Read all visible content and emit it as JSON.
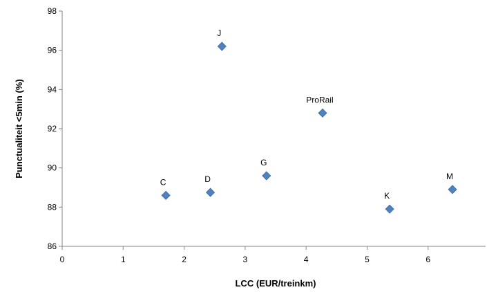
{
  "chart_data": {
    "type": "scatter",
    "title": "",
    "xlabel": "LCC (EUR/treinkm)",
    "ylabel": "Punctualiteit  <5min (%)",
    "xlim": [
      0,
      7
    ],
    "ylim": [
      86,
      98
    ],
    "xticks": [
      0,
      1,
      2,
      3,
      4,
      5,
      6
    ],
    "yticks": [
      86,
      88,
      90,
      92,
      94,
      96,
      98
    ],
    "grid": false,
    "legend": "none",
    "marker": "diamond",
    "marker_color": "#4F81BD",
    "points": [
      {
        "label": "C",
        "x": 1.7,
        "y": 88.6
      },
      {
        "label": "D",
        "x": 2.43,
        "y": 88.75
      },
      {
        "label": "J",
        "x": 2.62,
        "y": 96.2
      },
      {
        "label": "G",
        "x": 3.35,
        "y": 89.6
      },
      {
        "label": "ProRail",
        "x": 4.27,
        "y": 92.8
      },
      {
        "label": "K",
        "x": 5.37,
        "y": 87.9
      },
      {
        "label": "M",
        "x": 6.4,
        "y": 88.9
      }
    ]
  }
}
